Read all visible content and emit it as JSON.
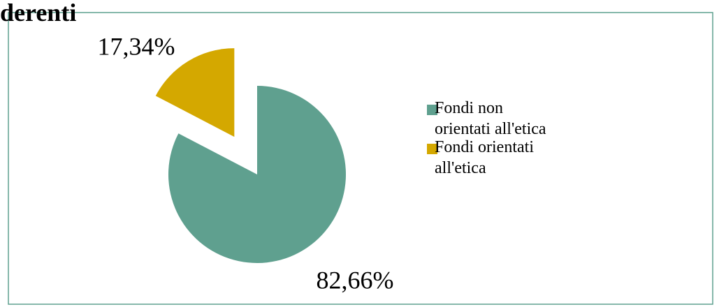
{
  "chart_data": {
    "type": "pie",
    "title": "derenti",
    "categories": [
      "Fondi non orientati all'etica",
      "Fondi orientati all'etica"
    ],
    "values": [
      82.66,
      17.34
    ],
    "value_labels": [
      "82,66%",
      "17,34%"
    ],
    "colors": [
      "#5fa08f",
      "#d4a800"
    ],
    "exploded": [
      false,
      true
    ],
    "legend": "right"
  }
}
